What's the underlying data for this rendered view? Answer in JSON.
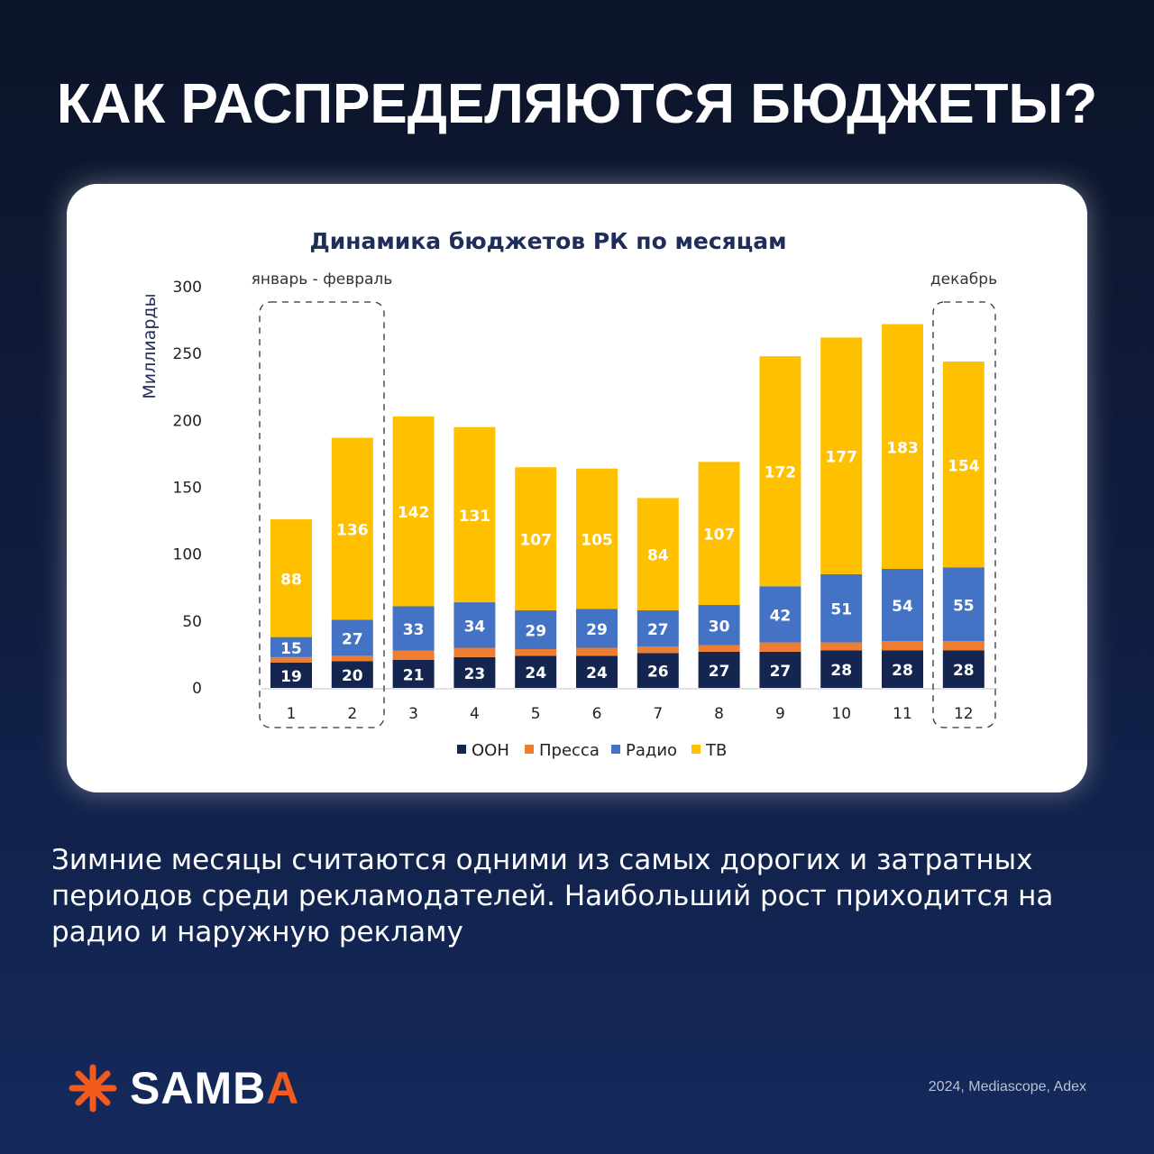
{
  "header": {
    "title": "КАК РАСПРЕДЕЛЯЮТСЯ БЮДЖЕТЫ?"
  },
  "chart_data": {
    "type": "bar",
    "stacked": true,
    "title": "Динамика бюджетов РК по месяцам",
    "ylabel": "Миллиарды",
    "xlabel": "",
    "ylim": [
      0,
      300
    ],
    "yticks": [
      "0",
      "50",
      "100",
      "150",
      "200",
      "250",
      "300"
    ],
    "categories": [
      "1",
      "2",
      "3",
      "4",
      "5",
      "6",
      "7",
      "8",
      "9",
      "10",
      "11",
      "12"
    ],
    "series": [
      {
        "name": "ООН",
        "color": "#14254f",
        "values": [
          19,
          20,
          21,
          23,
          24,
          24,
          26,
          27,
          27,
          28,
          28,
          28
        ],
        "labels": true
      },
      {
        "name": "Пресса",
        "color": "#ed7d31",
        "values": [
          4,
          4,
          7,
          7,
          5,
          6,
          5,
          5,
          7,
          6,
          7,
          7
        ],
        "labels": false
      },
      {
        "name": "Радио",
        "color": "#4472c4",
        "values": [
          15,
          27,
          33,
          34,
          29,
          29,
          27,
          30,
          42,
          51,
          54,
          55
        ],
        "labels": true
      },
      {
        "name": "ТВ",
        "color": "#ffc000",
        "values": [
          88,
          136,
          142,
          131,
          107,
          105,
          84,
          107,
          172,
          177,
          183,
          154
        ],
        "labels": true
      }
    ],
    "annotations": [
      {
        "text": "январь - февраль",
        "months": [
          "1",
          "2"
        ]
      },
      {
        "text": "декабрь",
        "months": [
          "12"
        ]
      }
    ],
    "legend": "bottom",
    "grid": false
  },
  "body": {
    "text": "Зимние месяцы считаются одними из самых дорогих и затратных периодов среди рекламодателей. Наибольший рост приходится на радио и наружную рекламу"
  },
  "footer": {
    "logo_main": "SAMB",
    "logo_accent": "A",
    "source": "2024, Mediascope, Adex"
  },
  "colors": {
    "accent": "#f25a1e"
  }
}
